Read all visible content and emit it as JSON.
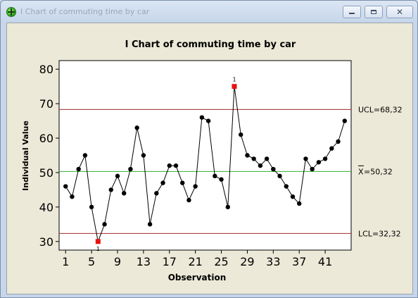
{
  "window": {
    "title": "I Chart of commuting time by car",
    "icon": "minitab-graph-icon",
    "controls": {
      "minimize": "minimize-icon",
      "maximize": "maximize-icon",
      "close": "close-icon"
    }
  },
  "colors": {
    "window_bg": "#ece9d8",
    "plot_bg": "#ffffff",
    "control_limit": "#a52a2a",
    "center_line": "#2eaf2e",
    "data_line": "#000000",
    "point": "#000000",
    "flagged_point": "#e8120c"
  },
  "chart_data": {
    "type": "line",
    "title": "I Chart of commuting time by car",
    "xlabel": "Observation",
    "ylabel": "Individual Value",
    "xlim": [
      0,
      45
    ],
    "ylim": [
      27.5,
      82.5
    ],
    "xticks": [
      1,
      5,
      9,
      13,
      17,
      21,
      25,
      29,
      33,
      37,
      41
    ],
    "xtick_labels": [
      "1",
      "5",
      "9",
      "13",
      "17",
      "21",
      "25",
      "29",
      "33",
      "37",
      "41"
    ],
    "yticks": [
      30,
      40,
      50,
      60,
      70,
      80
    ],
    "ytick_labels": [
      "30",
      "40",
      "50",
      "60",
      "70",
      "80"
    ],
    "grid": false,
    "x": [
      1,
      2,
      3,
      4,
      5,
      6,
      7,
      8,
      9,
      10,
      11,
      12,
      13,
      14,
      15,
      16,
      17,
      18,
      19,
      20,
      21,
      22,
      23,
      24,
      25,
      26,
      27,
      28,
      29,
      30,
      31,
      32,
      33,
      34,
      35,
      36,
      37,
      38,
      39,
      40,
      41,
      42,
      43,
      44
    ],
    "values": [
      46,
      43,
      51,
      55,
      40,
      30,
      35,
      45,
      49,
      44,
      51,
      63,
      55,
      35,
      44,
      47,
      52,
      52,
      47,
      42,
      46,
      66,
      65,
      49,
      48,
      40,
      75,
      61,
      55,
      54,
      52,
      54,
      51,
      49,
      46,
      43,
      41,
      54,
      51,
      53,
      54,
      57,
      59,
      65
    ],
    "limits": [
      {
        "name": "UCL",
        "value": 68.32,
        "label": "UCL=68,32"
      },
      {
        "name": "center",
        "value": 50.32,
        "label_symbol": "X",
        "label_value": "=50,32"
      },
      {
        "name": "LCL",
        "value": 32.32,
        "label": "LCL=32,32"
      }
    ],
    "flagged": [
      {
        "x": 6,
        "value": 30,
        "test": "1"
      },
      {
        "x": 27,
        "value": 75,
        "test": "1"
      }
    ]
  }
}
